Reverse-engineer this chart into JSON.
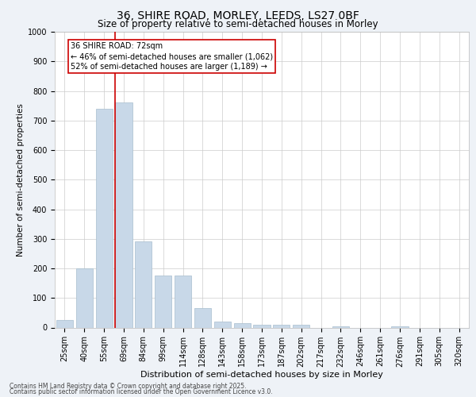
{
  "title_line1": "36, SHIRE ROAD, MORLEY, LEEDS, LS27 0BF",
  "title_line2": "Size of property relative to semi-detached houses in Morley",
  "xlabel": "Distribution of semi-detached houses by size in Morley",
  "ylabel": "Number of semi-detached properties",
  "categories": [
    "25sqm",
    "40sqm",
    "55sqm",
    "69sqm",
    "84sqm",
    "99sqm",
    "114sqm",
    "128sqm",
    "143sqm",
    "158sqm",
    "173sqm",
    "187sqm",
    "202sqm",
    "217sqm",
    "232sqm",
    "246sqm",
    "261sqm",
    "276sqm",
    "291sqm",
    "305sqm",
    "320sqm"
  ],
  "values": [
    25,
    200,
    740,
    760,
    290,
    175,
    175,
    65,
    20,
    15,
    10,
    10,
    10,
    0,
    3,
    0,
    0,
    3,
    0,
    0,
    0
  ],
  "bar_color": "#c8d8e8",
  "bar_edge_color": "#a8bece",
  "vline_color": "#cc0000",
  "annotation_title": "36 SHIRE ROAD: 72sqm",
  "annotation_line1": "← 46% of semi-detached houses are smaller (1,062)",
  "annotation_line2": "52% of semi-detached houses are larger (1,189) →",
  "annotation_box_color": "#cc0000",
  "ylim": [
    0,
    1000
  ],
  "yticks": [
    0,
    100,
    200,
    300,
    400,
    500,
    600,
    700,
    800,
    900,
    1000
  ],
  "footer_line1": "Contains HM Land Registry data © Crown copyright and database right 2025.",
  "footer_line2": "Contains public sector information licensed under the Open Government Licence v3.0.",
  "bg_color": "#eef2f7",
  "plot_bg_color": "#ffffff",
  "grid_color": "#cccccc",
  "title_fontsize": 10,
  "subtitle_fontsize": 8.5,
  "xlabel_fontsize": 8,
  "ylabel_fontsize": 7.5,
  "tick_fontsize": 7,
  "annot_fontsize": 7,
  "footer_fontsize": 5.5
}
